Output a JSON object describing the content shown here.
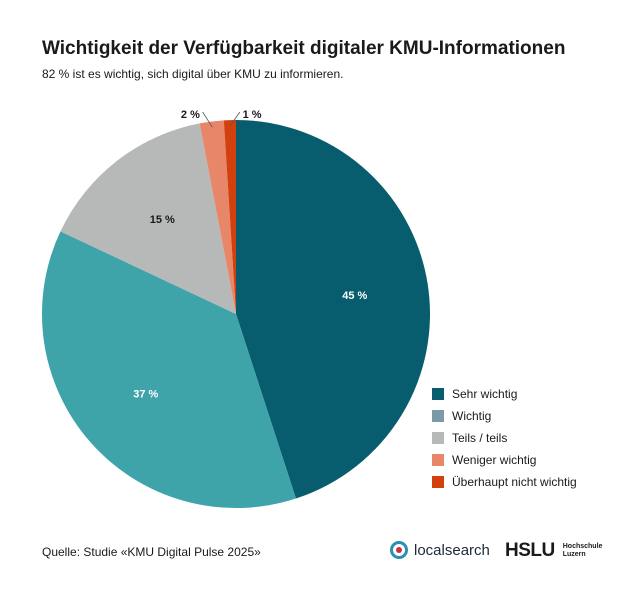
{
  "title": "Wichtigkeit der Verfügbarkeit digitaler KMU-Informationen",
  "subtitle": "82 % ist es wichtig, sich digital über KMU zu informieren.",
  "source": "Quelle: Studie «KMU Digital Pulse 2025»",
  "logos": {
    "localsearch": "localsearch",
    "hslu": "HSLU",
    "hslu_sub1": "Hochschule",
    "hslu_sub2": "Luzern"
  },
  "chart_data": {
    "type": "pie",
    "title": "Wichtigkeit der Verfügbarkeit digitaler KMU-Informationen",
    "legend_placement": "right",
    "slices": [
      {
        "name": "Sehr wichtig",
        "value": 45,
        "label": "45 %",
        "color": "#075d6d",
        "legend_color": "#075d6d"
      },
      {
        "name": "Wichtig",
        "value": 37,
        "label": "37 %",
        "color": "#3fa3aa",
        "legend_color": "#7b9aa3"
      },
      {
        "name": "Teils / teils",
        "value": 15,
        "label": "15 %",
        "color": "#b7b8b8",
        "legend_color": "#b7b8b8"
      },
      {
        "name": "Weniger wichtig",
        "value": 2,
        "label": "2 %",
        "color": "#e8866a",
        "legend_color": "#e8866a"
      },
      {
        "name": "Überhaupt nicht wichtig",
        "value": 1,
        "label": "1 %",
        "color": "#d2400e",
        "legend_color": "#d2400e"
      }
    ]
  }
}
